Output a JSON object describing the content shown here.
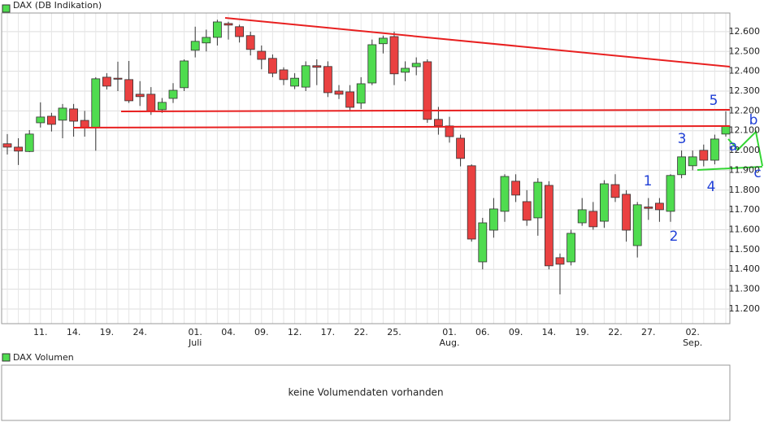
{
  "chart_data": {
    "type": "candlestick",
    "categories": [
      null,
      null,
      null,
      "11.",
      null,
      null,
      "14.",
      null,
      null,
      "19.",
      null,
      null,
      "24.",
      null,
      null,
      null,
      null,
      "01.",
      null,
      null,
      "04.",
      null,
      null,
      "09.",
      null,
      null,
      "12.",
      null,
      null,
      "17.",
      null,
      null,
      "22.",
      null,
      null,
      "25.",
      null,
      null,
      null,
      null,
      "01.",
      null,
      null,
      "06.",
      null,
      null,
      "09.",
      null,
      null,
      "14.",
      null,
      null,
      "19.",
      null,
      null,
      "22.",
      null,
      null,
      "27.",
      null,
      null,
      null,
      "02.",
      null,
      null,
      null
    ],
    "month_labels": [
      null,
      null,
      null,
      null,
      null,
      null,
      null,
      null,
      null,
      null,
      null,
      null,
      null,
      null,
      null,
      null,
      null,
      "Juli",
      null,
      null,
      null,
      null,
      null,
      null,
      null,
      null,
      null,
      null,
      null,
      null,
      null,
      null,
      null,
      null,
      null,
      null,
      null,
      null,
      null,
      null,
      "Aug.",
      null,
      null,
      null,
      null,
      null,
      null,
      null,
      null,
      null,
      null,
      null,
      null,
      null,
      null,
      null,
      null,
      null,
      null,
      null,
      null,
      null,
      "Sep.",
      null,
      null,
      null
    ],
    "series": [
      {
        "name": "DAX (DB Indikation)",
        "up_color": "#4fdc4f",
        "down_color": "#ea4141",
        "open": [
          12034,
          12017,
          11995,
          12140,
          12173,
          12153,
          12210,
          12152,
          12116,
          12370,
          12365,
          12358,
          12284,
          12284,
          12206,
          12263,
          12317,
          12506,
          12543,
          12571,
          12641,
          12625,
          12580,
          12501,
          12465,
          12407,
          12325,
          12320,
          12428,
          12424,
          12300,
          12296,
          12239,
          12341,
          12539,
          12575,
          12395,
          12423,
          12448,
          12157,
          12124,
          12062,
          11923,
          11438,
          11598,
          11693,
          11845,
          11742,
          11660,
          11824,
          11459,
          11438,
          11635,
          11693,
          11643,
          11828,
          11779,
          11520,
          11715,
          11734,
          11693,
          11878,
          11923,
          12001,
          11951,
          12083
        ],
        "high": [
          12083,
          12062,
          12103,
          12243,
          12190,
          12235,
          12235,
          12200,
          12370,
          12390,
          12448,
          12452,
          12350,
          12320,
          12265,
          12340,
          12460,
          12625,
          12610,
          12660,
          12650,
          12635,
          12600,
          12530,
          12485,
          12420,
          12390,
          12450,
          12460,
          12450,
          12330,
          12330,
          12370,
          12560,
          12580,
          12600,
          12450,
          12470,
          12460,
          12220,
          12170,
          12080,
          11930,
          11660,
          11760,
          11880,
          11880,
          11800,
          11860,
          11845,
          11480,
          11600,
          11760,
          11740,
          11850,
          11880,
          11800,
          11740,
          11760,
          11760,
          11880,
          12000,
          12000,
          12030,
          12080,
          12198
        ],
        "low": [
          11980,
          11927,
          11992,
          12116,
          12096,
          12062,
          12070,
          12070,
          11999,
          12308,
          12300,
          12240,
          12225,
          12180,
          12190,
          12240,
          12300,
          12470,
          12500,
          12530,
          12560,
          12545,
          12480,
          12410,
          12370,
          12330,
          12310,
          12300,
          12330,
          12270,
          12260,
          12200,
          12210,
          12330,
          12490,
          12330,
          12350,
          12380,
          12140,
          12080,
          12040,
          11920,
          11540,
          11400,
          11560,
          11640,
          11740,
          11620,
          11570,
          11400,
          11274,
          11420,
          11620,
          11600,
          11610,
          11740,
          11540,
          11460,
          11650,
          11640,
          11640,
          11860,
          11900,
          11920,
          11930,
          12070
        ],
        "close": [
          12017,
          11997,
          12083,
          12169,
          12132,
          12214,
          12148,
          12116,
          12362,
          12325,
          12360,
          12251,
          12272,
          12198,
          12243,
          12304,
          12452,
          12551,
          12571,
          12649,
          12633,
          12575,
          12510,
          12460,
          12390,
          12358,
          12365,
          12428,
          12420,
          12292,
          12284,
          12218,
          12337,
          12534,
          12567,
          12387,
          12415,
          12440,
          12157,
          12124,
          12070,
          11960,
          11553,
          11635,
          11705,
          11869,
          11775,
          11648,
          11840,
          11418,
          11426,
          11582,
          11701,
          11615,
          11832,
          11763,
          11598,
          11726,
          11708,
          11701,
          11874,
          11968,
          11968,
          11951,
          12058,
          12124
        ]
      }
    ],
    "ylim": [
      11126,
      12694
    ],
    "yticks": [
      {
        "value": 11200,
        "label": "11.200"
      },
      {
        "value": 11300,
        "label": "11.300"
      },
      {
        "value": 11400,
        "label": "11.400"
      },
      {
        "value": 11500,
        "label": "11.500"
      },
      {
        "value": 11600,
        "label": "11.600"
      },
      {
        "value": 11700,
        "label": "11.700"
      },
      {
        "value": 11800,
        "label": "11.800"
      },
      {
        "value": 11900,
        "label": "11.900"
      },
      {
        "value": 12000,
        "label": "12.000"
      },
      {
        "value": 12100,
        "label": "12.100"
      },
      {
        "value": 12200,
        "label": "12.200"
      },
      {
        "value": 12300,
        "label": "12.300"
      },
      {
        "value": 12400,
        "label": "12.400"
      },
      {
        "value": 12500,
        "label": "12.500"
      },
      {
        "value": 12600,
        "label": "12.600"
      }
    ],
    "grid": true,
    "annotations": [
      "5",
      "b",
      "a",
      "3",
      "c",
      "4",
      "1",
      "2"
    ],
    "volume_panel": {
      "legend": "DAX Volumen",
      "message": "keine Volumendaten vorhanden"
    }
  }
}
